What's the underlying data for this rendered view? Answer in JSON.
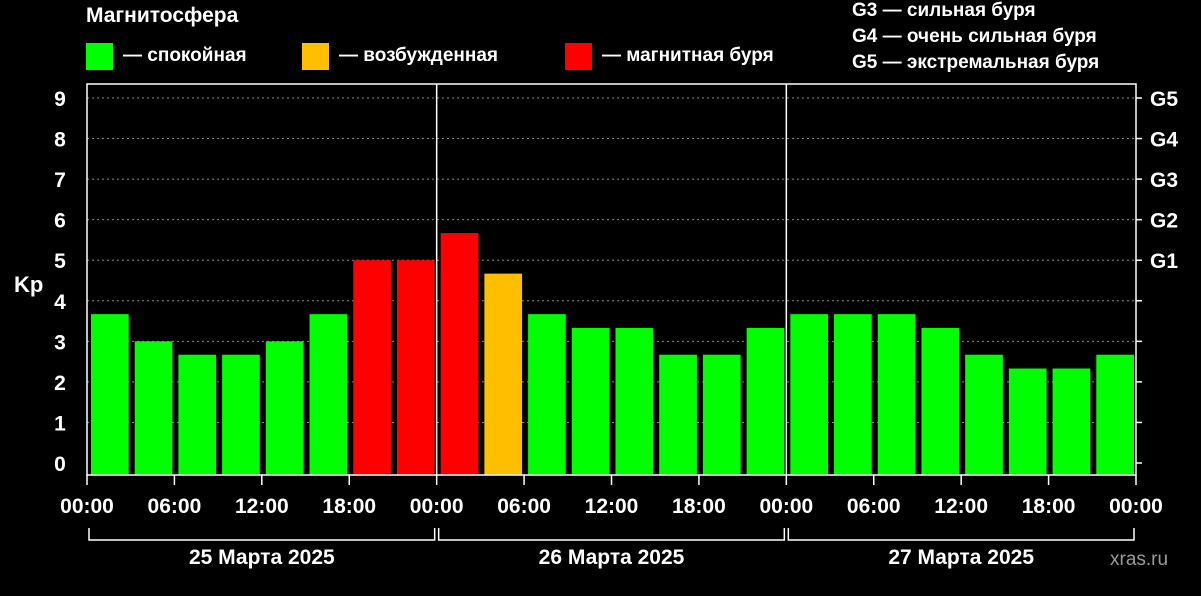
{
  "chart_data": {
    "type": "bar",
    "title": "Магнитосфера",
    "ylabel": "Kp",
    "ylim": [
      0,
      9
    ],
    "yticks": [
      "0",
      "1",
      "2",
      "3",
      "4",
      "5",
      "6",
      "7",
      "8",
      "9"
    ],
    "right_ticks": [
      {
        "value": 5,
        "label": "G1"
      },
      {
        "value": 6,
        "label": "G2"
      },
      {
        "value": 7,
        "label": "G3"
      },
      {
        "value": 8,
        "label": "G4"
      },
      {
        "value": 9,
        "label": "G5"
      }
    ],
    "legend": [
      {
        "label": "— спокойная",
        "color": "#00ff00"
      },
      {
        "label": "— возбужденная",
        "color": "#ffbf00"
      },
      {
        "label": "— магнитная буря",
        "color": "#ff0000"
      }
    ],
    "g_notes": [
      "G3 — сильная буря",
      "G4 — очень сильная буря",
      "G5 — экстремальная буря"
    ],
    "x_tick_labels": [
      "00:00",
      "06:00",
      "12:00",
      "18:00",
      "00:00",
      "06:00",
      "12:00",
      "18:00",
      "00:00",
      "06:00",
      "12:00",
      "18:00",
      "00:00"
    ],
    "days": [
      "25 Марта 2025",
      "26 Марта 2025",
      "27 Марта 2025"
    ],
    "values": [
      3.67,
      3.0,
      2.67,
      2.67,
      3.0,
      3.67,
      5.0,
      5.0,
      5.67,
      4.67,
      3.67,
      3.33,
      3.33,
      2.67,
      2.67,
      3.33,
      3.67,
      3.67,
      3.67,
      3.33,
      2.67,
      2.33,
      2.33,
      2.67
    ],
    "colors": [
      "#00ff00",
      "#00ff00",
      "#00ff00",
      "#00ff00",
      "#00ff00",
      "#00ff00",
      "#ff0000",
      "#ff0000",
      "#ff0000",
      "#ffbf00",
      "#00ff00",
      "#00ff00",
      "#00ff00",
      "#00ff00",
      "#00ff00",
      "#00ff00",
      "#00ff00",
      "#00ff00",
      "#00ff00",
      "#00ff00",
      "#00ff00",
      "#00ff00",
      "#00ff00",
      "#00ff00"
    ],
    "grid": true
  },
  "watermark": "xras.ru"
}
